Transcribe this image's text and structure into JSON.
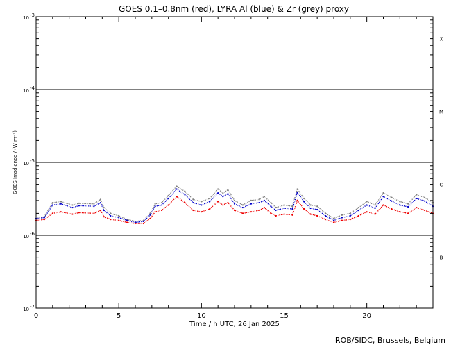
{
  "chart_data": {
    "type": "scatter",
    "title": "GOES 0.1–0.8nm (red), LYRA Al (blue) & Zr (grey) proxy",
    "xlabel": "Time / h UTC, 26 Jan 2025",
    "ylabel": "GOES Irradiance / (W m⁻²)",
    "credit": "ROB/SIDC, Brussels, Belgium",
    "log_y": true,
    "xlim": [
      0,
      24
    ],
    "ylim": [
      1e-07,
      0.001
    ],
    "x_ticks": [
      0,
      5,
      10,
      15,
      20
    ],
    "x_tick_labels": [
      "0",
      "5",
      "10",
      "15",
      "20"
    ],
    "y_ticks": [
      {
        "value": 1e-07,
        "label": "10",
        "exp": "-7"
      },
      {
        "value": 1e-06,
        "label": "10",
        "exp": "-6"
      },
      {
        "value": 1e-05,
        "label": "10",
        "exp": "-5"
      },
      {
        "value": 0.0001,
        "label": "10",
        "exp": "-4"
      },
      {
        "value": 0.001,
        "label": "10",
        "exp": "-3"
      }
    ],
    "flare_class_lines": [
      1e-06,
      1e-05,
      0.0001
    ],
    "flare_classes": [
      {
        "label": "B",
        "value": 5e-07
      },
      {
        "label": "C",
        "value": 5e-06
      },
      {
        "label": "M",
        "value": 5e-05
      },
      {
        "label": "X",
        "value": 0.0005
      }
    ],
    "series": [
      {
        "name": "Zr (grey)",
        "color": "#808080",
        "x": [
          0.0,
          0.5,
          1.0,
          1.5,
          2.2,
          2.6,
          3.5,
          3.9,
          4.1,
          4.5,
          5.0,
          5.5,
          6.0,
          6.5,
          6.9,
          7.2,
          7.6,
          8.0,
          8.5,
          9.0,
          9.5,
          10.0,
          10.5,
          11.0,
          11.3,
          11.6,
          12.0,
          12.5,
          13.0,
          13.5,
          13.8,
          14.2,
          14.5,
          15.0,
          15.5,
          15.8,
          16.2,
          16.6,
          17.0,
          17.5,
          18.0,
          18.5,
          19.0,
          19.5,
          20.0,
          20.5,
          21.0,
          21.5,
          22.0,
          22.5,
          23.0,
          23.5,
          24.0
        ],
        "y": [
          1.7e-06,
          1.8e-06,
          2.8e-06,
          2.9e-06,
          2.6e-06,
          2.75e-06,
          2.7e-06,
          3.1e-06,
          2.4e-06,
          2e-06,
          1.85e-06,
          1.65e-06,
          1.55e-06,
          1.6e-06,
          2e-06,
          2.7e-06,
          2.8e-06,
          3.5e-06,
          4.7e-06,
          4e-06,
          3.1e-06,
          2.9e-06,
          3.2e-06,
          4.3e-06,
          3.8e-06,
          4.2e-06,
          3e-06,
          2.6e-06,
          3e-06,
          3.1e-06,
          3.4e-06,
          2.8e-06,
          2.4e-06,
          2.6e-06,
          2.5e-06,
          4.3e-06,
          3.2e-06,
          2.6e-06,
          2.5e-06,
          2e-06,
          1.7e-06,
          1.9e-06,
          2e-06,
          2.4e-06,
          2.9e-06,
          2.6e-06,
          3.8e-06,
          3.3e-06,
          2.9e-06,
          2.7e-06,
          3.6e-06,
          3.3e-06,
          2.8e-06
        ]
      },
      {
        "name": "Al (blue)",
        "color": "#0000cc",
        "x": [
          0.0,
          0.5,
          1.0,
          1.5,
          2.2,
          2.6,
          3.5,
          3.9,
          4.1,
          4.5,
          5.0,
          5.5,
          6.0,
          6.5,
          6.9,
          7.2,
          7.6,
          8.0,
          8.5,
          9.0,
          9.5,
          10.0,
          10.5,
          11.0,
          11.3,
          11.6,
          12.0,
          12.5,
          13.0,
          13.5,
          13.8,
          14.2,
          14.5,
          15.0,
          15.5,
          15.8,
          16.2,
          16.6,
          17.0,
          17.5,
          18.0,
          18.5,
          19.0,
          19.5,
          20.0,
          20.5,
          21.0,
          21.5,
          22.0,
          22.5,
          23.0,
          23.5,
          24.0
        ],
        "y": [
          1.7e-06,
          1.75e-06,
          2.6e-06,
          2.7e-06,
          2.4e-06,
          2.55e-06,
          2.5e-06,
          2.8e-06,
          2.2e-06,
          1.85e-06,
          1.75e-06,
          1.6e-06,
          1.5e-06,
          1.55e-06,
          1.9e-06,
          2.5e-06,
          2.6e-06,
          3.2e-06,
          4.3e-06,
          3.6e-06,
          2.8e-06,
          2.6e-06,
          2.9e-06,
          3.8e-06,
          3.4e-06,
          3.7e-06,
          2.7e-06,
          2.4e-06,
          2.7e-06,
          2.8e-06,
          3e-06,
          2.5e-06,
          2.2e-06,
          2.35e-06,
          2.3e-06,
          3.9e-06,
          2.9e-06,
          2.35e-06,
          2.25e-06,
          1.85e-06,
          1.6e-06,
          1.75e-06,
          1.85e-06,
          2.2e-06,
          2.6e-06,
          2.35e-06,
          3.4e-06,
          2.95e-06,
          2.6e-06,
          2.45e-06,
          3.2e-06,
          2.95e-06,
          2.5e-06
        ]
      },
      {
        "name": "GOES 0.1–0.8nm (red)",
        "color": "#ee0000",
        "x": [
          0.0,
          0.5,
          1.0,
          1.5,
          2.2,
          2.6,
          3.5,
          3.9,
          4.1,
          4.5,
          5.0,
          5.5,
          6.0,
          6.5,
          6.9,
          7.2,
          7.6,
          8.0,
          8.5,
          9.0,
          9.5,
          10.0,
          10.5,
          11.0,
          11.3,
          11.6,
          12.0,
          12.5,
          13.0,
          13.5,
          13.8,
          14.2,
          14.5,
          15.0,
          15.5,
          15.8,
          16.2,
          16.6,
          17.0,
          17.5,
          18.0,
          18.5,
          19.0,
          19.5,
          20.0,
          20.5,
          21.0,
          21.5,
          22.0,
          22.5,
          23.0,
          23.5,
          24.0
        ],
        "y": [
          1.6e-06,
          1.65e-06,
          2e-06,
          2.1e-06,
          1.95e-06,
          2.05e-06,
          2e-06,
          2.2e-06,
          1.8e-06,
          1.65e-06,
          1.6e-06,
          1.5e-06,
          1.45e-06,
          1.45e-06,
          1.7e-06,
          2.1e-06,
          2.2e-06,
          2.6e-06,
          3.4e-06,
          2.8e-06,
          2.2e-06,
          2.1e-06,
          2.3e-06,
          2.9e-06,
          2.6e-06,
          2.8e-06,
          2.2e-06,
          2e-06,
          2.1e-06,
          2.2e-06,
          2.4e-06,
          2e-06,
          1.85e-06,
          1.95e-06,
          1.9e-06,
          3e-06,
          2.3e-06,
          1.95e-06,
          1.85e-06,
          1.65e-06,
          1.5e-06,
          1.6e-06,
          1.65e-06,
          1.85e-06,
          2.1e-06,
          1.95e-06,
          2.6e-06,
          2.3e-06,
          2.1e-06,
          2e-06,
          2.4e-06,
          2.2e-06,
          2e-06
        ]
      }
    ]
  }
}
